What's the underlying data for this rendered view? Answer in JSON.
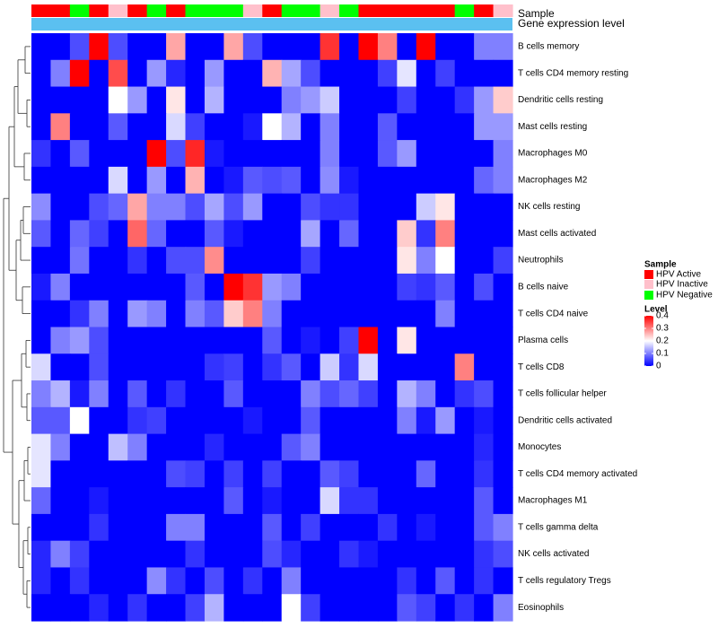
{
  "chart_data": {
    "type": "heatmap",
    "title": "",
    "annotation_tracks": [
      {
        "name": "Sample",
        "values": [
          "HPV Active",
          "HPV Active",
          "HPV Negative",
          "HPV Active",
          "HPV Inactive",
          "HPV Active",
          "HPV Negative",
          "HPV Active",
          "HPV Negative",
          "HPV Negative",
          "HPV Negative",
          "HPV Inactive",
          "HPV Active",
          "HPV Negative",
          "HPV Negative",
          "HPV Inactive",
          "HPV Negative",
          "HPV Active",
          "HPV Active",
          "HPV Active",
          "HPV Active",
          "HPV Active",
          "HPV Negative",
          "HPV Active",
          "HPV Inactive"
        ]
      },
      {
        "name": "Gene expression level",
        "values": []
      }
    ],
    "rows": [
      "B cells memory",
      "T cells CD4 memory resting",
      "Dendritic cells resting",
      "Mast cells resting",
      "Macrophages M0",
      "Macrophages M2",
      "NK cells resting",
      "Mast cells activated",
      "Neutrophils",
      "B cells naive",
      "T cells CD4 naive",
      "Plasma cells",
      "T cells CD8",
      "T cells follicular helper",
      "Dendritic cells activated",
      "Monocytes",
      "T cells CD4 memory activated",
      "Macrophages M1",
      "T cells gamma delta",
      "NK cells activated",
      "T cells regulatory  Tregs",
      "Eosinophils"
    ],
    "values": [
      [
        0.0,
        0.0,
        0.06,
        0.4,
        0.06,
        0.0,
        0.0,
        0.27,
        0.0,
        0.0,
        0.27,
        0.06,
        0.0,
        0.0,
        0.0,
        0.36,
        0.0,
        0.4,
        0.3,
        0.0,
        0.4,
        0.0,
        0.0,
        0.1,
        0.1
      ],
      [
        0.0,
        0.1,
        0.4,
        0.0,
        0.34,
        0.0,
        0.12,
        0.03,
        0.0,
        0.12,
        0.0,
        0.0,
        0.26,
        0.13,
        0.06,
        0.0,
        0.0,
        0.0,
        0.05,
        0.18,
        0.0,
        0.05,
        0.0,
        0.0,
        0.0
      ],
      [
        0.0,
        0.0,
        0.0,
        0.0,
        0.2,
        0.12,
        0.0,
        0.22,
        0.0,
        0.14,
        0.0,
        0.0,
        0.0,
        0.1,
        0.12,
        0.16,
        0.0,
        0.0,
        0.0,
        0.05,
        0.0,
        0.0,
        0.04,
        0.12,
        0.24
      ],
      [
        0.0,
        0.3,
        0.0,
        0.0,
        0.07,
        0.0,
        0.0,
        0.17,
        0.05,
        0.0,
        0.0,
        0.02,
        0.2,
        0.14,
        0.0,
        0.1,
        0.0,
        0.0,
        0.07,
        0.0,
        0.0,
        0.0,
        0.0,
        0.12,
        0.12
      ],
      [
        0.04,
        0.0,
        0.07,
        0.0,
        0.0,
        0.0,
        0.4,
        0.06,
        0.37,
        0.02,
        0.0,
        0.0,
        0.0,
        0.0,
        0.0,
        0.1,
        0.0,
        0.0,
        0.07,
        0.12,
        0.0,
        0.0,
        0.0,
        0.0,
        0.1
      ],
      [
        0.0,
        0.0,
        0.0,
        0.0,
        0.17,
        0.0,
        0.12,
        0.0,
        0.26,
        0.0,
        0.02,
        0.07,
        0.06,
        0.07,
        0.0,
        0.11,
        0.02,
        0.0,
        0.0,
        0.0,
        0.0,
        0.0,
        0.0,
        0.08,
        0.1
      ],
      [
        0.11,
        0.0,
        0.0,
        0.06,
        0.08,
        0.27,
        0.1,
        0.1,
        0.06,
        0.13,
        0.06,
        0.12,
        0.0,
        0.0,
        0.06,
        0.04,
        0.04,
        0.0,
        0.0,
        0.0,
        0.16,
        0.22,
        0.0,
        0.0,
        0.0
      ],
      [
        0.07,
        0.0,
        0.08,
        0.05,
        0.0,
        0.32,
        0.08,
        0.0,
        0.0,
        0.07,
        0.02,
        0.0,
        0.0,
        0.0,
        0.13,
        0.0,
        0.08,
        0.0,
        0.0,
        0.24,
        0.04,
        0.3,
        0.0,
        0.0,
        0.0
      ],
      [
        0.0,
        0.0,
        0.09,
        0.0,
        0.0,
        0.04,
        0.0,
        0.06,
        0.06,
        0.29,
        0.0,
        0.0,
        0.0,
        0.0,
        0.05,
        0.0,
        0.0,
        0.0,
        0.0,
        0.22,
        0.1,
        0.2,
        0.0,
        0.0,
        0.05
      ],
      [
        0.02,
        0.1,
        0.0,
        0.0,
        0.0,
        0.0,
        0.0,
        0.0,
        0.07,
        0.0,
        0.4,
        0.36,
        0.12,
        0.1,
        0.0,
        0.0,
        0.0,
        0.0,
        0.0,
        0.05,
        0.04,
        0.07,
        0.0,
        0.06,
        0.0
      ],
      [
        0.0,
        0.0,
        0.04,
        0.1,
        0.0,
        0.12,
        0.1,
        0.0,
        0.1,
        0.07,
        0.24,
        0.3,
        0.1,
        0.0,
        0.0,
        0.0,
        0.0,
        0.0,
        0.0,
        0.0,
        0.0,
        0.1,
        0.0,
        0.0,
        0.0
      ],
      [
        0.0,
        0.1,
        0.12,
        0.06,
        0.0,
        0.0,
        0.0,
        0.0,
        0.0,
        0.0,
        0.0,
        0.0,
        0.07,
        0.0,
        0.02,
        0.0,
        0.05,
        0.4,
        0.0,
        0.22,
        0.0,
        0.0,
        0.0,
        0.0,
        0.0
      ],
      [
        0.17,
        0.0,
        0.0,
        0.06,
        0.0,
        0.0,
        0.0,
        0.0,
        0.0,
        0.04,
        0.05,
        0.0,
        0.04,
        0.07,
        0.0,
        0.16,
        0.04,
        0.17,
        0.0,
        0.0,
        0.0,
        0.0,
        0.3,
        0.0,
        0.0
      ],
      [
        0.1,
        0.14,
        0.02,
        0.1,
        0.0,
        0.07,
        0.0,
        0.04,
        0.0,
        0.0,
        0.07,
        0.0,
        0.0,
        0.0,
        0.1,
        0.06,
        0.08,
        0.05,
        0.0,
        0.14,
        0.1,
        0.0,
        0.04,
        0.06,
        0.0
      ],
      [
        0.07,
        0.07,
        0.2,
        0.0,
        0.0,
        0.04,
        0.05,
        0.0,
        0.0,
        0.0,
        0.0,
        0.02,
        0.0,
        0.0,
        0.07,
        0.0,
        0.0,
        0.0,
        0.0,
        0.1,
        0.02,
        0.12,
        0.0,
        0.02,
        0.0
      ],
      [
        0.18,
        0.1,
        0.0,
        0.0,
        0.15,
        0.1,
        0.0,
        0.0,
        0.0,
        0.03,
        0.0,
        0.0,
        0.0,
        0.07,
        0.1,
        0.0,
        0.0,
        0.0,
        0.0,
        0.0,
        0.0,
        0.0,
        0.0,
        0.03,
        0.0
      ],
      [
        0.18,
        0.0,
        0.0,
        0.0,
        0.0,
        0.0,
        0.0,
        0.06,
        0.05,
        0.0,
        0.05,
        0.0,
        0.05,
        0.0,
        0.0,
        0.07,
        0.05,
        0.0,
        0.0,
        0.0,
        0.08,
        0.0,
        0.0,
        0.04,
        0.0
      ],
      [
        0.08,
        0.0,
        0.0,
        0.02,
        0.0,
        0.0,
        0.0,
        0.0,
        0.0,
        0.0,
        0.07,
        0.0,
        0.02,
        0.0,
        0.0,
        0.17,
        0.04,
        0.04,
        0.0,
        0.0,
        0.0,
        0.0,
        0.0,
        0.07,
        0.0
      ],
      [
        0.0,
        0.0,
        0.0,
        0.04,
        0.0,
        0.0,
        0.0,
        0.1,
        0.1,
        0.0,
        0.0,
        0.0,
        0.07,
        0.0,
        0.05,
        0.0,
        0.0,
        0.0,
        0.04,
        0.0,
        0.02,
        0.0,
        0.0,
        0.07,
        0.1
      ],
      [
        0.03,
        0.1,
        0.05,
        0.0,
        0.0,
        0.0,
        0.0,
        0.0,
        0.04,
        0.0,
        0.0,
        0.0,
        0.06,
        0.03,
        0.0,
        0.0,
        0.04,
        0.02,
        0.0,
        0.0,
        0.0,
        0.0,
        0.0,
        0.04,
        0.06
      ],
      [
        0.03,
        0.0,
        0.04,
        0.0,
        0.0,
        0.0,
        0.11,
        0.04,
        0.0,
        0.06,
        0.0,
        0.04,
        0.0,
        0.1,
        0.0,
        0.0,
        0.0,
        0.0,
        0.0,
        0.04,
        0.0,
        0.07,
        0.0,
        0.04,
        0.0
      ],
      [
        0.0,
        0.0,
        0.0,
        0.03,
        0.0,
        0.04,
        0.0,
        0.0,
        0.05,
        0.14,
        0.0,
        0.0,
        0.0,
        0.2,
        0.05,
        0.0,
        0.0,
        0.0,
        0.0,
        0.07,
        0.05,
        0.0,
        0.04,
        0.0,
        0.1
      ]
    ],
    "color_scale": {
      "min": 0,
      "max": 0.4,
      "low": "#0000FF",
      "mid": "#FFFFFF",
      "high": "#FF0000",
      "mid_value": 0.2
    },
    "legend": {
      "placement": "right",
      "sample_title": "Sample",
      "sample_entries": [
        {
          "label": "HPV Active",
          "color": "#FF0000"
        },
        {
          "label": "HPV Inactive",
          "color": "#FFC0CB"
        },
        {
          "label": "HPV Negative",
          "color": "#00FF00"
        }
      ],
      "level_title": "Level",
      "level_ticks": [
        "0.4",
        "0.3",
        "0.2",
        "0.1",
        "0"
      ],
      "level_tick_values": [
        0.4,
        0.3,
        0.2,
        0.1,
        0
      ]
    },
    "dendrogram": "rows",
    "grid": false
  },
  "colors": {
    "hpv_active": "#FF0000",
    "hpv_inactive": "#FFC0CB",
    "hpv_negative": "#00FF00",
    "expression_track": "#5BC0F0"
  }
}
